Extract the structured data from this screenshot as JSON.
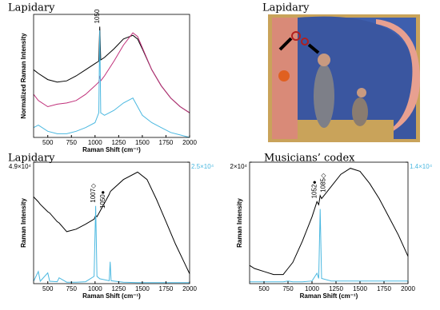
{
  "chart_data": [
    {
      "type": "line",
      "title": "Lapidary",
      "x_label": "Raman Shift (cm⁻¹)",
      "y_label": "Normalized Raman Intensity",
      "x": [
        350,
        400,
        500,
        600,
        700,
        800,
        900,
        1000,
        1040,
        1050,
        1060,
        1100,
        1200,
        1300,
        1400,
        1450,
        1500,
        1600,
        1700,
        1800,
        1900,
        2000
      ],
      "series": [
        {
          "color": "#000000",
          "values": [
            0.55,
            0.52,
            0.47,
            0.45,
            0.46,
            0.5,
            0.55,
            0.6,
            0.62,
            0.9,
            0.63,
            0.65,
            0.72,
            0.8,
            0.83,
            0.8,
            0.72,
            0.55,
            0.42,
            0.32,
            0.25,
            0.2
          ]
        },
        {
          "color": "#c0307a",
          "values": [
            0.35,
            0.3,
            0.25,
            0.27,
            0.28,
            0.3,
            0.35,
            0.42,
            0.45,
            0.5,
            0.46,
            0.5,
            0.62,
            0.75,
            0.85,
            0.82,
            0.73,
            0.55,
            0.42,
            0.32,
            0.25,
            0.2
          ]
        },
        {
          "color": "#4bb8e0",
          "values": [
            0.08,
            0.1,
            0.05,
            0.03,
            0.03,
            0.05,
            0.08,
            0.12,
            0.2,
            0.87,
            0.2,
            0.18,
            0.22,
            0.28,
            0.32,
            0.25,
            0.18,
            0.12,
            0.08,
            0.04,
            0.02,
            0.0
          ]
        }
      ],
      "xlim": [
        350,
        2000
      ],
      "xticks": [
        500,
        750,
        1000,
        1250,
        1500,
        1750,
        2000
      ],
      "ylim": [
        0,
        1
      ],
      "annotations": [
        {
          "text": "1050",
          "x": 1050
        }
      ]
    },
    {
      "type": "line",
      "title": "Lapidary",
      "x_label": "Raman Shift (cm⁻¹)",
      "y_label": "Raman Intensity",
      "x": [
        350,
        400,
        420,
        500,
        520,
        600,
        620,
        700,
        800,
        900,
        990,
        1007,
        1020,
        1050,
        1150,
        1160,
        1170,
        1300,
        1450,
        1550,
        1650,
        1750,
        1850,
        1950,
        2000
      ],
      "series": [
        {
          "color": "#000000",
          "values": [
            35000,
            33000,
            32000,
            29000,
            28500,
            25000,
            24500,
            21000,
            22000,
            24000,
            26000,
            27500,
            27000,
            29000,
            36000,
            37000,
            37500,
            42000,
            45000,
            42000,
            34000,
            25000,
            16000,
            8000,
            4000
          ]
        },
        {
          "color": "#4bb8e0",
          "axis": "y2",
          "values": [
            500,
            2500,
            500,
            2200,
            500,
            400,
            1200,
            300,
            300,
            400,
            1500,
            16000,
            1500,
            1000,
            600,
            4500,
            600,
            300,
            200,
            200,
            200,
            200,
            200,
            200,
            200
          ]
        }
      ],
      "xlim": [
        350,
        2000
      ],
      "xticks": [
        500,
        750,
        1000,
        1250,
        1500,
        1750,
        2000
      ],
      "ylim": [
        0,
        49000
      ],
      "yticks": [
        {
          "value": 49000,
          "label": "4.9×10⁴"
        }
      ],
      "y2lim": [
        0,
        25000
      ],
      "y2ticks": [
        {
          "value": 25000,
          "label": "2.5×10⁴"
        }
      ],
      "annotations": [
        {
          "text": "1007◇",
          "x": 1007
        },
        {
          "text": "1050●",
          "x": 1050
        }
      ]
    },
    {
      "type": "line",
      "title": "Musicians’ codex",
      "x_label": "Raman Shift (cm⁻¹)",
      "y_label": "Raman Intensity",
      "x": [
        350,
        400,
        500,
        600,
        700,
        750,
        800,
        900,
        1000,
        1052,
        1070,
        1085,
        1100,
        1200,
        1300,
        1400,
        1500,
        1600,
        1700,
        1800,
        1900,
        2000
      ],
      "series": [
        {
          "color": "#000000",
          "values": [
            3000,
            2500,
            2000,
            1500,
            1500,
            2500,
            3500,
            7000,
            11000,
            13500,
            13000,
            14500,
            14000,
            16000,
            18000,
            19000,
            18500,
            16500,
            14000,
            11000,
            8000,
            4500
          ]
        },
        {
          "color": "#4bb8e0",
          "axis": "y2",
          "values": [
            200,
            200,
            200,
            200,
            200,
            300,
            200,
            200,
            300,
            1200,
            600,
            8600,
            600,
            300,
            300,
            300,
            300,
            300,
            300,
            300,
            300,
            300
          ]
        }
      ],
      "xlim": [
        350,
        2000
      ],
      "xticks": [
        500,
        750,
        1000,
        1250,
        1500,
        1750,
        2000
      ],
      "ylim": [
        0,
        20000
      ],
      "yticks": [
        {
          "value": 20000,
          "label": "2×10⁴"
        }
      ],
      "y2lim": [
        0,
        14000
      ],
      "y2ticks": [
        {
          "value": 14000,
          "label": "1.4×10⁴"
        }
      ],
      "annotations": [
        {
          "text": "1052●",
          "x": 1052
        },
        {
          "text": "1085◇",
          "x": 1085
        }
      ]
    }
  ],
  "image": {
    "title": "Lapidary"
  }
}
